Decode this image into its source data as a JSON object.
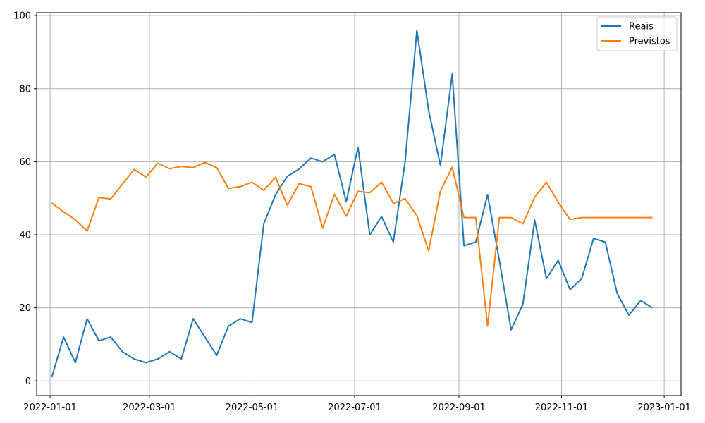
{
  "chart_data": {
    "type": "line",
    "title": "",
    "xlabel": "",
    "ylabel": "",
    "x_axis": {
      "type": "date",
      "range": [
        "2021-12-24",
        "2023-01-11"
      ],
      "ticks": [
        {
          "value": "2022-01-01",
          "label": "2022-01-01"
        },
        {
          "value": "2022-03-01",
          "label": "2022-03-01"
        },
        {
          "value": "2022-05-01",
          "label": "2022-05-01"
        },
        {
          "value": "2022-07-01",
          "label": "2022-07-01"
        },
        {
          "value": "2022-09-01",
          "label": "2022-09-01"
        },
        {
          "value": "2022-11-01",
          "label": "2022-11-01"
        },
        {
          "value": "2023-01-01",
          "label": "2023-01-01"
        }
      ]
    },
    "y_axis": {
      "range": [
        -4,
        100.8
      ],
      "ticks": [
        {
          "value": 0,
          "label": "0"
        },
        {
          "value": 20,
          "label": "20"
        },
        {
          "value": 40,
          "label": "40"
        },
        {
          "value": 60,
          "label": "60"
        },
        {
          "value": 80,
          "label": "80"
        },
        {
          "value": 100,
          "label": "100"
        }
      ]
    },
    "grid": true,
    "legend": {
      "position": "top-right"
    },
    "x": [
      "2022-01-02",
      "2022-01-09",
      "2022-01-16",
      "2022-01-23",
      "2022-01-30",
      "2022-02-06",
      "2022-02-13",
      "2022-02-20",
      "2022-02-27",
      "2022-03-06",
      "2022-03-13",
      "2022-03-20",
      "2022-03-27",
      "2022-04-03",
      "2022-04-10",
      "2022-04-17",
      "2022-04-24",
      "2022-05-01",
      "2022-05-08",
      "2022-05-15",
      "2022-05-22",
      "2022-05-29",
      "2022-06-05",
      "2022-06-12",
      "2022-06-19",
      "2022-06-26",
      "2022-07-03",
      "2022-07-10",
      "2022-07-17",
      "2022-07-24",
      "2022-07-31",
      "2022-08-07",
      "2022-08-14",
      "2022-08-21",
      "2022-08-28",
      "2022-09-04",
      "2022-09-11",
      "2022-09-18",
      "2022-09-25",
      "2022-10-02",
      "2022-10-09",
      "2022-10-16",
      "2022-10-23",
      "2022-10-30",
      "2022-11-06",
      "2022-11-13",
      "2022-11-20",
      "2022-11-27",
      "2022-12-04",
      "2022-12-11",
      "2022-12-18",
      "2022-12-25"
    ],
    "series": [
      {
        "name": "Reais",
        "color": "#1f77b4",
        "values": [
          1,
          12,
          5,
          17,
          11,
          12,
          8,
          6,
          5,
          6,
          8,
          6,
          17,
          12,
          7,
          15,
          17,
          16,
          43,
          51,
          56,
          58,
          61,
          60,
          62,
          49,
          64,
          40,
          45,
          38,
          60,
          96,
          74,
          59,
          84,
          37,
          38,
          51,
          33,
          14,
          21,
          44,
          28,
          33,
          25,
          28,
          39,
          38,
          24,
          18,
          22,
          20
        ]
      },
      {
        "name": "Previstos",
        "color": "#ff7f0e",
        "values": [
          48.7,
          46.3,
          44.1,
          41.0,
          50.2,
          49.8,
          53.9,
          57.9,
          55.8,
          59.6,
          58.1,
          58.7,
          58.4,
          59.8,
          58.4,
          52.7,
          53.2,
          54.4,
          52.2,
          55.7,
          48.1,
          54.0,
          53.2,
          41.8,
          51.1,
          45.1,
          51.9,
          51.5,
          54.4,
          48.6,
          49.9,
          45.2,
          35.6,
          52.0,
          58.5,
          44.7,
          44.7,
          15.0,
          44.7,
          44.7,
          43.0,
          50.3,
          54.4,
          48.9,
          44.2,
          44.7,
          44.7,
          44.7,
          44.7,
          44.7,
          44.7,
          44.7
        ]
      }
    ]
  }
}
